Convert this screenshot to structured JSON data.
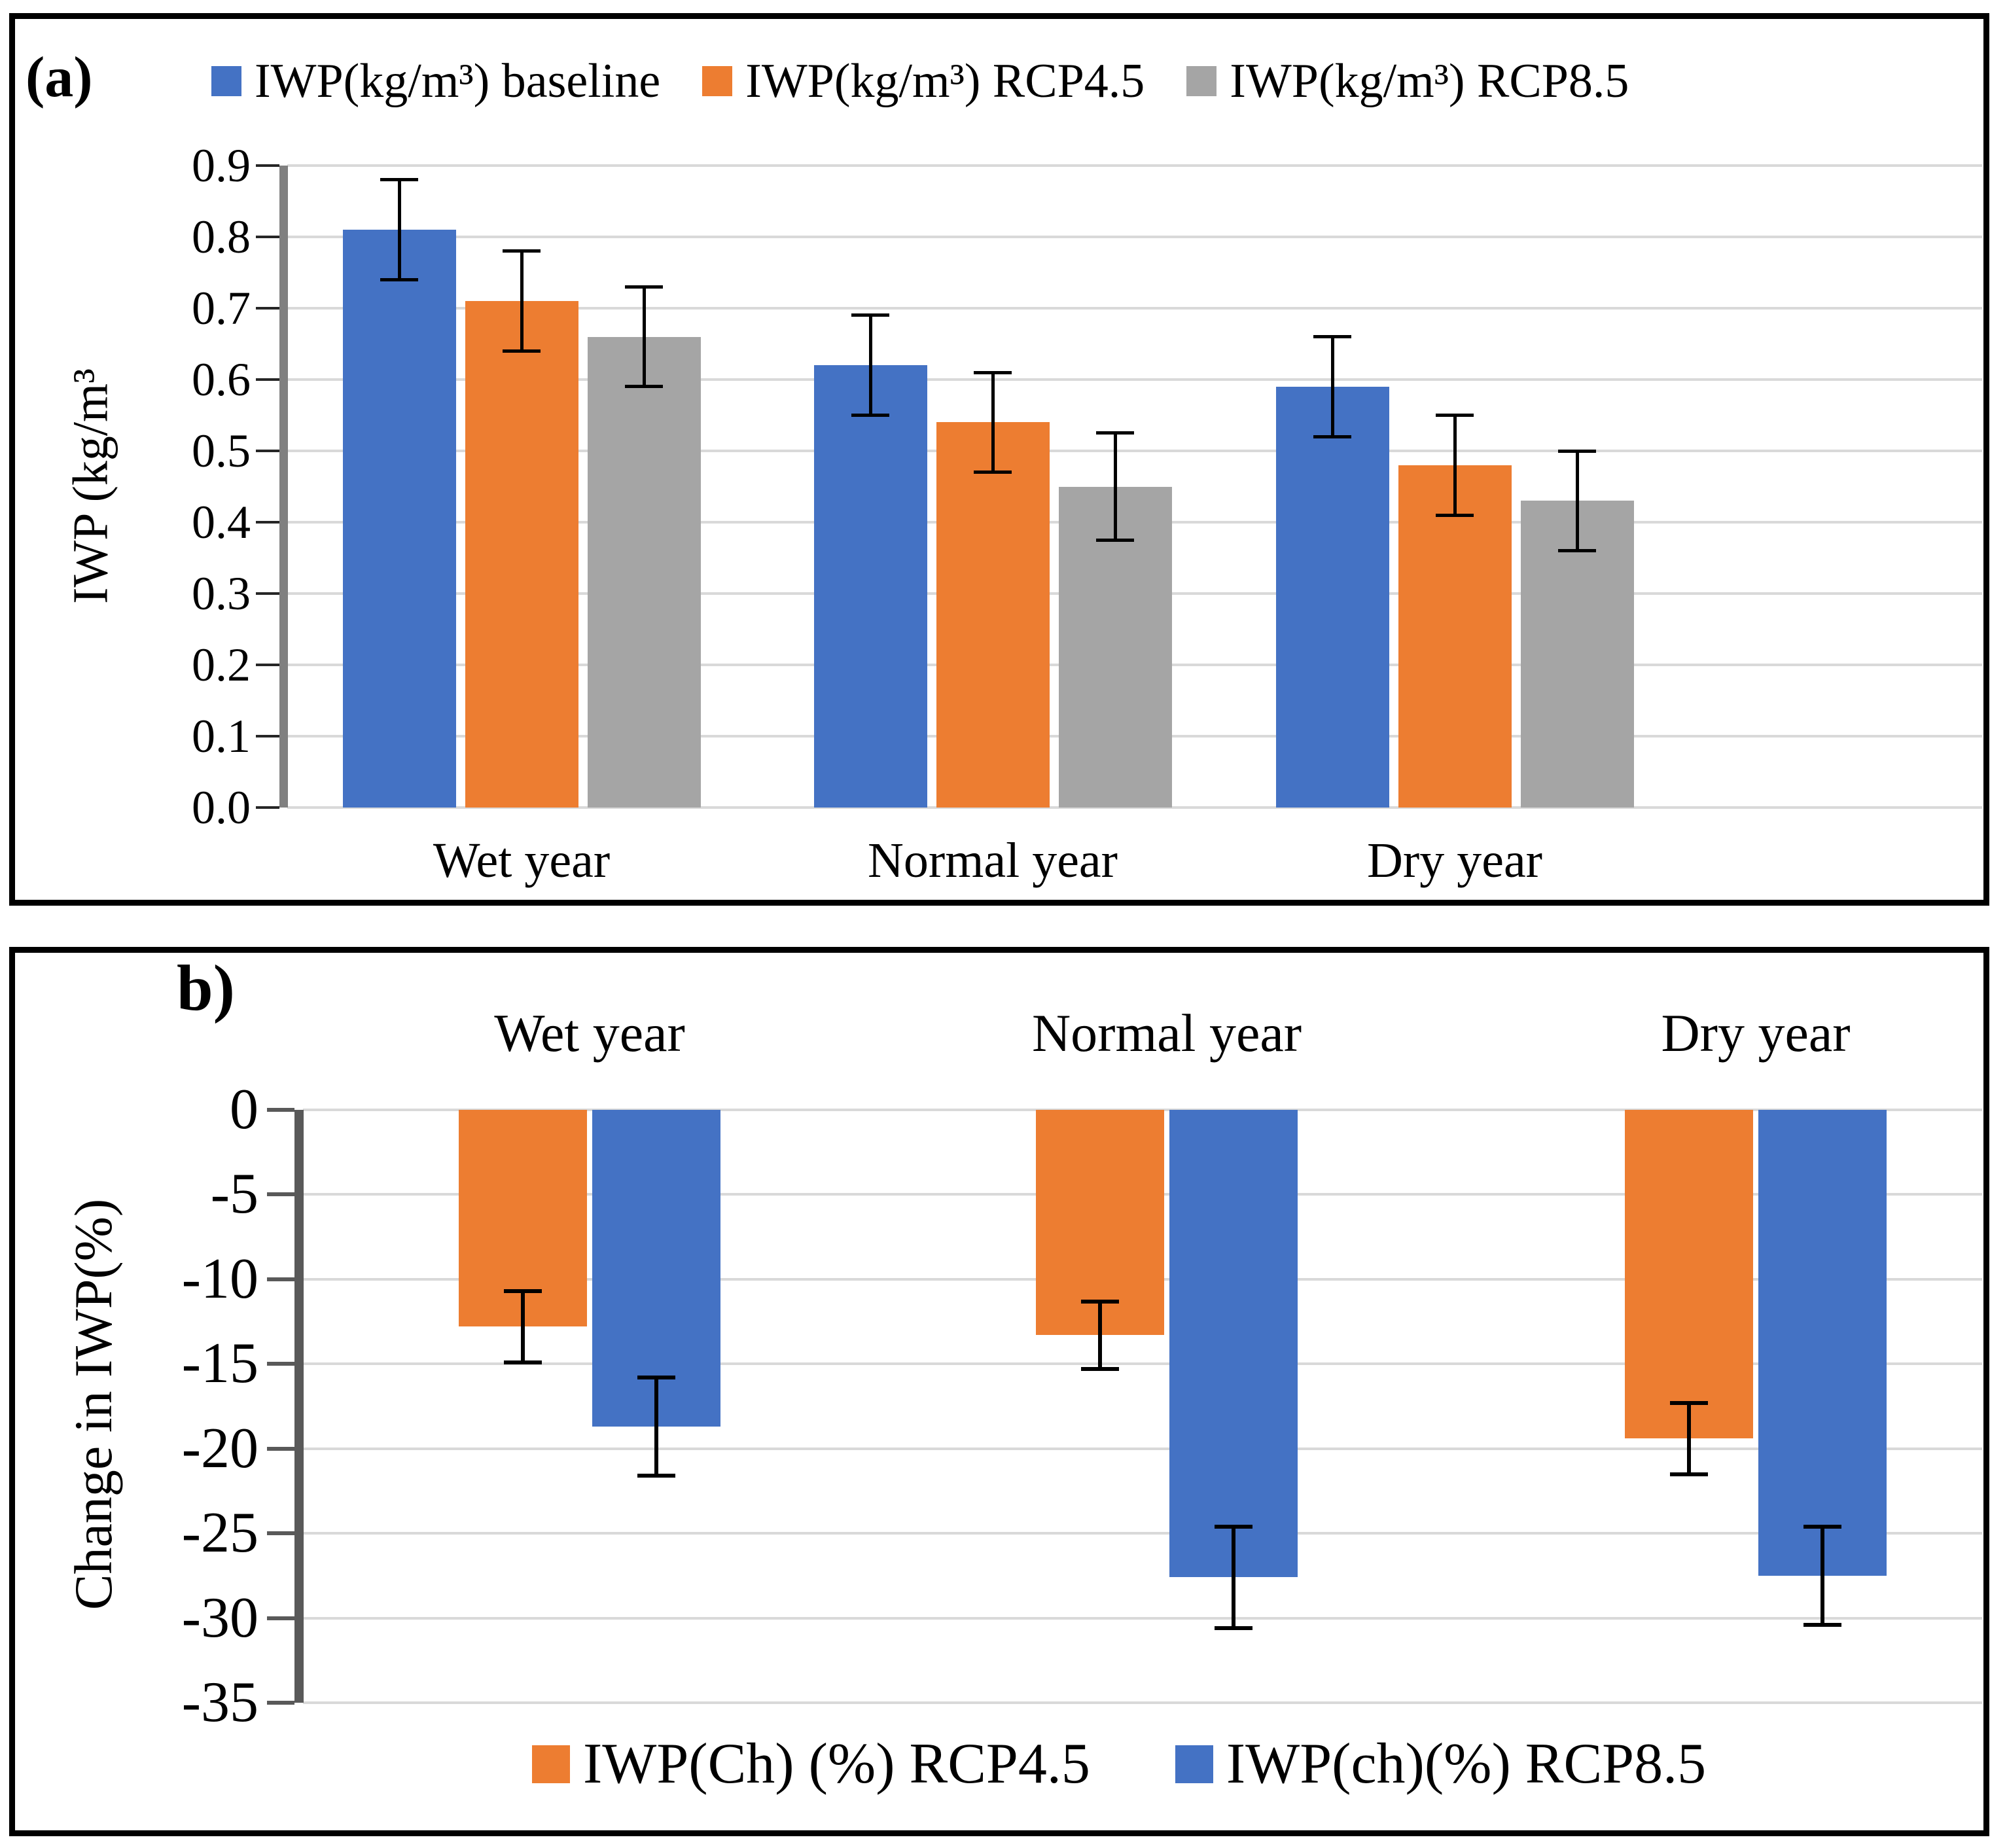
{
  "colors": {
    "baseline_blue": "#4472C4",
    "rcp45_orange": "#ED7D31",
    "rcp85_gray": "#A5A5A5",
    "gridline": "#D9D9D9",
    "axis_a": "#808080",
    "axis_b": "#595959",
    "tick_a": "#262626",
    "error_bar": "#000000",
    "panel_border": "#000000"
  },
  "chart_data": [
    {
      "id": "a",
      "type": "bar",
      "panel_label": "(a)",
      "title": "",
      "ylabel": "IWP (kg/m³",
      "xlabel": "",
      "ylim": [
        0.0,
        0.9
      ],
      "grid": true,
      "legend_position": "top",
      "category_labels_position": "bottom",
      "categories": [
        "Wet year",
        "Normal year",
        "Dry year"
      ],
      "ytick_values": [
        0.9,
        0.8,
        0.7,
        0.6,
        0.5,
        0.4,
        0.3,
        0.2,
        0.1,
        0.0
      ],
      "ytick_labels": [
        "0.9",
        "0.8",
        "0.7",
        "0.6",
        "0.5",
        "0.4",
        "0.3",
        "0.2",
        "0.1",
        "0.0"
      ],
      "series": [
        {
          "name": "IWP(kg/m³) baseline",
          "color_key": "baseline_blue",
          "values": [
            0.81,
            0.62,
            0.59
          ],
          "errors": [
            0.07,
            0.07,
            0.07
          ]
        },
        {
          "name": "IWP(kg/m³) RCP4.5",
          "color_key": "rcp45_orange",
          "values": [
            0.71,
            0.54,
            0.48
          ],
          "errors": [
            0.07,
            0.07,
            0.07
          ]
        },
        {
          "name": "IWP(kg/m³) RCP8.5",
          "color_key": "rcp85_gray",
          "values": [
            0.66,
            0.45,
            0.43
          ],
          "errors": [
            0.07,
            0.075,
            0.07
          ]
        }
      ]
    },
    {
      "id": "b",
      "type": "bar",
      "panel_label": "b)",
      "title": "",
      "ylabel": "Change in IWP(%)",
      "xlabel": "",
      "ylim": [
        -35,
        0
      ],
      "grid": true,
      "legend_position": "bottom",
      "category_labels_position": "top",
      "categories": [
        "Wet year",
        "Normal year",
        "Dry year"
      ],
      "ytick_values": [
        0,
        -5,
        -10,
        -15,
        -20,
        -25,
        -30,
        -35
      ],
      "ytick_labels": [
        "0",
        "-5",
        "-10",
        "-15",
        "-20",
        "-25",
        "-30",
        "-35"
      ],
      "series": [
        {
          "name": "IWP(Ch) (%) RCP4.5",
          "color_key": "rcp45_orange",
          "values": [
            -12.8,
            -13.3,
            -19.4
          ],
          "errors": [
            2.1,
            2.0,
            2.1
          ]
        },
        {
          "name": "IWP(ch)(%) RCP8.5",
          "color_key": "baseline_blue",
          "values": [
            -18.7,
            -27.6,
            -27.5
          ],
          "errors": [
            2.9,
            3.0,
            2.9
          ]
        }
      ]
    }
  ]
}
